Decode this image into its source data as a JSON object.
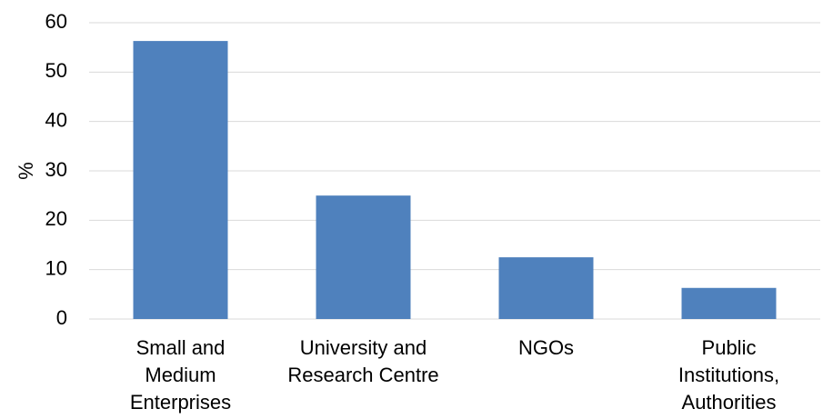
{
  "chart_data": {
    "type": "bar",
    "title": "",
    "xlabel": "",
    "ylabel": "%",
    "ylim": [
      0,
      60
    ],
    "yticks": [
      0,
      10,
      20,
      30,
      40,
      50,
      60
    ],
    "grid": true,
    "legend": "none",
    "bar_color": "#4f81bd",
    "grid_color": "#d9d9d9",
    "categories": [
      [
        "Small and",
        "Medium",
        "Enterprises"
      ],
      [
        "University and",
        "Research Centre"
      ],
      [
        "NGOs"
      ],
      [
        "Public",
        "Institutions,",
        "Authorities"
      ]
    ],
    "values": [
      56.3,
      25.0,
      12.5,
      6.3
    ]
  }
}
